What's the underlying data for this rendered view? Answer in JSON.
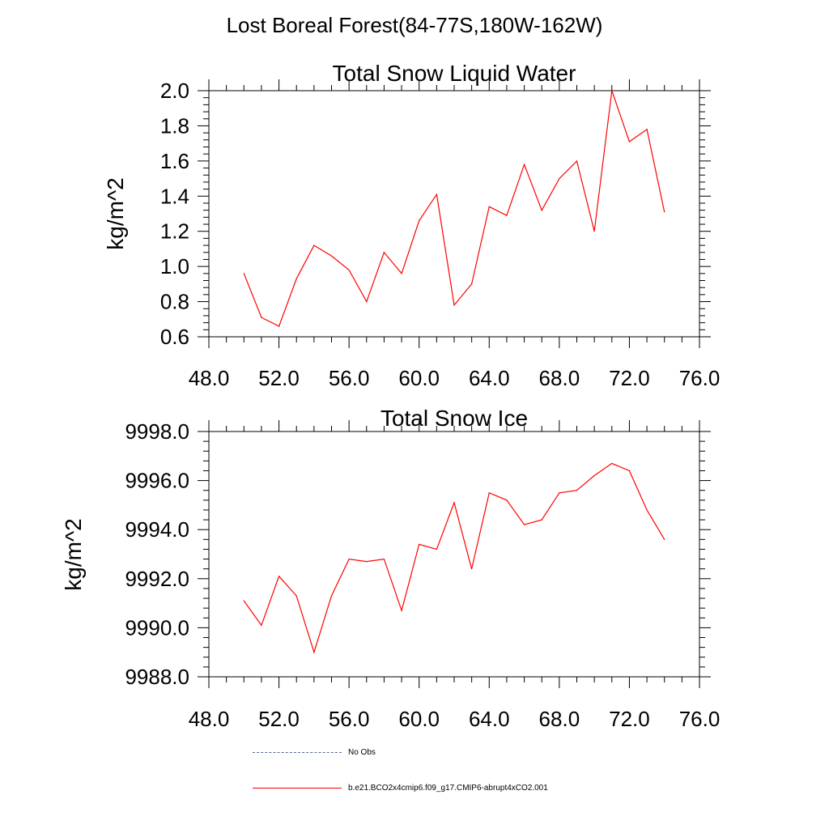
{
  "figure_title": "Lost Boreal Forest(84-77S,180W-162W)",
  "legend": [
    {
      "label": "No Obs",
      "color": "#5a6a9a",
      "style": "dashed"
    },
    {
      "label": "b.e21.BCO2x4cmip6.f09_g17.CMIP6-abrupt4xCO2.001",
      "color": "#ff0000",
      "style": "solid"
    }
  ],
  "chart_data": [
    {
      "type": "line",
      "title": "Total Snow Liquid Water",
      "xlabel": "",
      "ylabel": "kg/m^2",
      "xlim": [
        48,
        76
      ],
      "ylim": [
        0.6,
        2.0
      ],
      "xticks": [
        48,
        52,
        56,
        60,
        64,
        68,
        72,
        76
      ],
      "xtick_labels": [
        "48.0",
        "52.0",
        "56.0",
        "60.0",
        "64.0",
        "68.0",
        "72.0",
        "76.0"
      ],
      "yticks": [
        0.6,
        0.8,
        1.0,
        1.2,
        1.4,
        1.6,
        1.8,
        2.0
      ],
      "ytick_labels": [
        "0.6",
        "0.8",
        "1.0",
        "1.2",
        "1.4",
        "1.6",
        "1.8",
        "2.0"
      ],
      "series": [
        {
          "name": "b.e21.BCO2x4cmip6.f09_g17.CMIP6-abrupt4xCO2.001",
          "color": "#ff0000",
          "x": [
            50,
            51,
            52,
            53,
            54,
            55,
            56,
            57,
            58,
            59,
            60,
            61,
            62,
            63,
            64,
            65,
            66,
            67,
            68,
            69,
            70,
            71,
            72,
            73,
            74
          ],
          "values": [
            0.96,
            0.71,
            0.66,
            0.93,
            1.12,
            1.06,
            0.98,
            0.8,
            1.08,
            0.96,
            1.26,
            1.41,
            0.78,
            0.9,
            1.34,
            1.29,
            1.58,
            1.32,
            1.5,
            1.6,
            1.2,
            2.0,
            1.71,
            1.78,
            1.31
          ]
        }
      ]
    },
    {
      "type": "line",
      "title": "Total Snow Ice",
      "xlabel": "",
      "ylabel": "kg/m^2",
      "xlim": [
        48,
        76
      ],
      "ylim": [
        9988.0,
        9998.0
      ],
      "xticks": [
        48,
        52,
        56,
        60,
        64,
        68,
        72,
        76
      ],
      "xtick_labels": [
        "48.0",
        "52.0",
        "56.0",
        "60.0",
        "64.0",
        "68.0",
        "72.0",
        "76.0"
      ],
      "yticks": [
        9988,
        9990,
        9992,
        9994,
        9996,
        9998
      ],
      "ytick_labels": [
        "9988.0",
        "9990.0",
        "9992.0",
        "9994.0",
        "9996.0",
        "9998.0"
      ],
      "series": [
        {
          "name": "b.e21.BCO2x4cmip6.f09_g17.CMIP6-abrupt4xCO2.001",
          "color": "#ff0000",
          "x": [
            50,
            51,
            52,
            53,
            54,
            55,
            56,
            57,
            58,
            59,
            60,
            61,
            62,
            63,
            64,
            65,
            66,
            67,
            68,
            69,
            70,
            71,
            72,
            73,
            74
          ],
          "values": [
            9991.1,
            9990.1,
            9992.1,
            9991.3,
            9989.0,
            9991.3,
            9992.8,
            9992.7,
            9992.8,
            9990.7,
            9993.4,
            9993.2,
            9995.1,
            9992.4,
            9995.5,
            9995.2,
            9994.2,
            9994.4,
            9995.5,
            9995.6,
            9996.2,
            9996.7,
            9996.4,
            9994.8,
            9993.6
          ]
        }
      ]
    }
  ]
}
